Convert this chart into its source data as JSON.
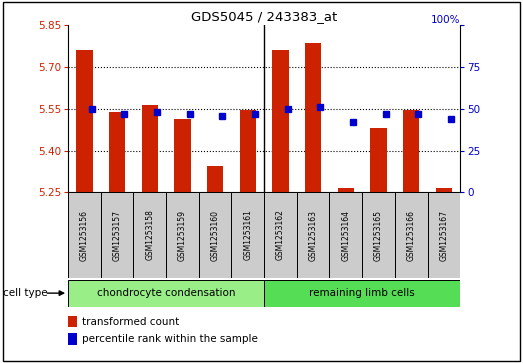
{
  "title": "GDS5045 / 243383_at",
  "samples": [
    "GSM1253156",
    "GSM1253157",
    "GSM1253158",
    "GSM1253159",
    "GSM1253160",
    "GSM1253161",
    "GSM1253162",
    "GSM1253163",
    "GSM1253164",
    "GSM1253165",
    "GSM1253166",
    "GSM1253167"
  ],
  "transformed_count": [
    5.76,
    5.54,
    5.565,
    5.515,
    5.345,
    5.545,
    5.76,
    5.785,
    5.265,
    5.48,
    5.545,
    5.265
  ],
  "percentile_rank": [
    50,
    47,
    48,
    47,
    46,
    47,
    50,
    51,
    42,
    47,
    47,
    44
  ],
  "y_min": 5.25,
  "y_max": 5.85,
  "y_ticks": [
    5.25,
    5.4,
    5.55,
    5.7,
    5.85
  ],
  "y2_ticks": [
    0,
    25,
    50,
    75,
    100
  ],
  "bar_color": "#cc2200",
  "dot_color": "#0000cc",
  "cell_type_labels": [
    "chondrocyte condensation",
    "remaining limb cells"
  ],
  "cell_type_color1": "#99ee88",
  "cell_type_color2": "#55dd55",
  "sample_box_color": "#cccccc",
  "label_transformed": "transformed count",
  "label_percentile": "percentile rank within the sample",
  "n_group1": 6,
  "n_group2": 6
}
